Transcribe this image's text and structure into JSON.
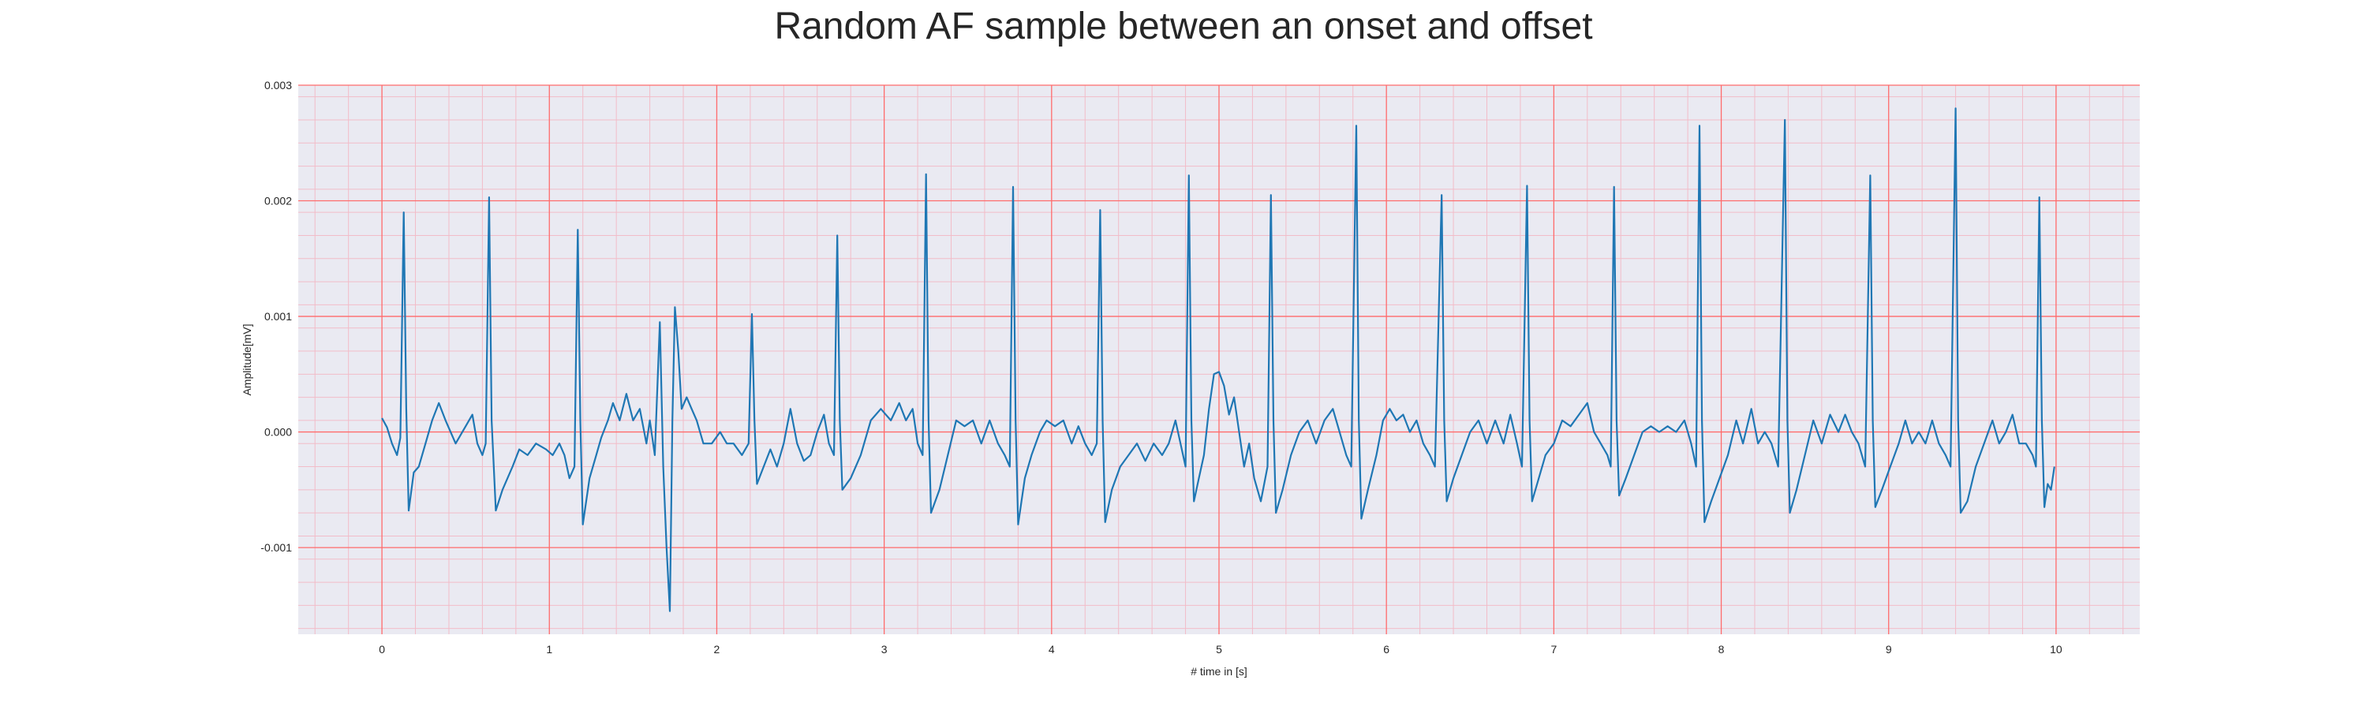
{
  "chart_data": {
    "type": "line",
    "title": "Random AF sample between an onset and offset",
    "xlabel": "# time in [s]",
    "ylabel": "Amplitude[mV]",
    "xlim": [
      -0.5,
      10.5
    ],
    "ylim": [
      -0.00175,
      0.003
    ],
    "x_ticks": [
      0,
      1,
      2,
      3,
      4,
      5,
      6,
      7,
      8,
      9,
      10
    ],
    "x_tick_labels": [
      "0",
      "1",
      "2",
      "3",
      "4",
      "5",
      "6",
      "7",
      "8",
      "9",
      "10"
    ],
    "y_ticks": [
      -0.001,
      0.0,
      0.001,
      0.002,
      0.003
    ],
    "y_tick_labels": [
      "-0.001",
      "0.000",
      "0.001",
      "0.002",
      "0.003"
    ],
    "grid": {
      "major": true,
      "minor": true
    },
    "colors": {
      "line": "#1f77b4",
      "major_grid": "#ff6b6b",
      "minor_grid": "#f2bcc8",
      "background": "#eaeaf2"
    },
    "series": [
      {
        "points": [
          [
            0.0,
            0.00012
          ],
          [
            0.03,
            4e-05
          ],
          [
            0.06,
            -0.0001
          ],
          [
            0.09,
            -0.0002
          ],
          [
            0.11,
            -5e-05
          ],
          [
            0.13,
            0.0019
          ],
          [
            0.145,
            0.0002
          ],
          [
            0.16,
            -0.00068
          ],
          [
            0.19,
            -0.00035
          ],
          [
            0.22,
            -0.0003
          ],
          [
            0.26,
            -0.0001
          ],
          [
            0.3,
            0.0001
          ],
          [
            0.34,
            0.00025
          ],
          [
            0.38,
            0.0001
          ],
          [
            0.44,
            -0.0001
          ],
          [
            0.5,
            5e-05
          ],
          [
            0.54,
            0.00015
          ],
          [
            0.57,
            -0.0001
          ],
          [
            0.6,
            -0.0002
          ],
          [
            0.62,
            -0.0001
          ],
          [
            0.64,
            0.00203
          ],
          [
            0.655,
            0.0001
          ],
          [
            0.68,
            -0.00068
          ],
          [
            0.72,
            -0.0005
          ],
          [
            0.78,
            -0.0003
          ],
          [
            0.82,
            -0.00015
          ],
          [
            0.87,
            -0.0002
          ],
          [
            0.92,
            -0.0001
          ],
          [
            0.98,
            -0.00015
          ],
          [
            1.02,
            -0.0002
          ],
          [
            1.06,
            -0.0001
          ],
          [
            1.09,
            -0.0002
          ],
          [
            1.12,
            -0.0004
          ],
          [
            1.15,
            -0.0003
          ],
          [
            1.17,
            0.00175
          ],
          [
            1.185,
            0.0001
          ],
          [
            1.2,
            -0.0008
          ],
          [
            1.24,
            -0.0004
          ],
          [
            1.28,
            -0.0002
          ],
          [
            1.31,
            -5e-05
          ],
          [
            1.35,
            0.0001
          ],
          [
            1.38,
            0.00025
          ],
          [
            1.42,
            0.0001
          ],
          [
            1.46,
            0.00033
          ],
          [
            1.5,
            0.0001
          ],
          [
            1.54,
            0.0002
          ],
          [
            1.58,
            -0.0001
          ],
          [
            1.6,
            0.0001
          ],
          [
            1.63,
            -0.0002
          ],
          [
            1.66,
            0.00095
          ],
          [
            1.68,
            -0.0003
          ],
          [
            1.7,
            -0.001
          ],
          [
            1.72,
            -0.00155
          ],
          [
            1.735,
            0.0001
          ],
          [
            1.75,
            0.00108
          ],
          [
            1.77,
            0.0007
          ],
          [
            1.79,
            0.0002
          ],
          [
            1.82,
            0.0003
          ],
          [
            1.85,
            0.0002
          ],
          [
            1.88,
            0.0001
          ],
          [
            1.92,
            -0.0001
          ],
          [
            1.97,
            -0.0001
          ],
          [
            2.02,
            0.0
          ],
          [
            2.06,
            -0.0001
          ],
          [
            2.1,
            -0.0001
          ],
          [
            2.15,
            -0.0002
          ],
          [
            2.19,
            -0.0001
          ],
          [
            2.21,
            0.00102
          ],
          [
            2.225,
            0.0001
          ],
          [
            2.24,
            -0.00045
          ],
          [
            2.28,
            -0.0003
          ],
          [
            2.32,
            -0.00015
          ],
          [
            2.36,
            -0.0003
          ],
          [
            2.4,
            -0.0001
          ],
          [
            2.44,
            0.0002
          ],
          [
            2.48,
            -0.0001
          ],
          [
            2.52,
            -0.00025
          ],
          [
            2.56,
            -0.0002
          ],
          [
            2.6,
            0.0
          ],
          [
            2.64,
            0.00015
          ],
          [
            2.67,
            -0.0001
          ],
          [
            2.7,
            -0.0002
          ],
          [
            2.72,
            0.0017
          ],
          [
            2.735,
            0.0001
          ],
          [
            2.75,
            -0.0005
          ],
          [
            2.8,
            -0.0004
          ],
          [
            2.86,
            -0.0002
          ],
          [
            2.92,
            0.0001
          ],
          [
            2.98,
            0.0002
          ],
          [
            3.04,
            0.0001
          ],
          [
            3.09,
            0.00025
          ],
          [
            3.13,
            0.0001
          ],
          [
            3.17,
            0.0002
          ],
          [
            3.2,
            -0.0001
          ],
          [
            3.23,
            -0.0002
          ],
          [
            3.25,
            0.00223
          ],
          [
            3.265,
            0.0001
          ],
          [
            3.28,
            -0.0007
          ],
          [
            3.33,
            -0.0005
          ],
          [
            3.38,
            -0.0002
          ],
          [
            3.43,
            0.0001
          ],
          [
            3.48,
            5e-05
          ],
          [
            3.53,
            0.0001
          ],
          [
            3.58,
            -0.0001
          ],
          [
            3.63,
            0.0001
          ],
          [
            3.68,
            -0.0001
          ],
          [
            3.72,
            -0.0002
          ],
          [
            3.75,
            -0.0003
          ],
          [
            3.77,
            0.00212
          ],
          [
            3.785,
            0.0001
          ],
          [
            3.8,
            -0.0008
          ],
          [
            3.84,
            -0.0004
          ],
          [
            3.88,
            -0.0002
          ],
          [
            3.93,
            0.0
          ],
          [
            3.97,
            0.0001
          ],
          [
            4.02,
            5e-05
          ],
          [
            4.07,
            0.0001
          ],
          [
            4.12,
            -0.0001
          ],
          [
            4.16,
            5e-05
          ],
          [
            4.2,
            -0.0001
          ],
          [
            4.24,
            -0.0002
          ],
          [
            4.27,
            -0.0001
          ],
          [
            4.29,
            0.00192
          ],
          [
            4.305,
            0.0001
          ],
          [
            4.32,
            -0.00078
          ],
          [
            4.36,
            -0.0005
          ],
          [
            4.41,
            -0.0003
          ],
          [
            4.46,
            -0.0002
          ],
          [
            4.51,
            -0.0001
          ],
          [
            4.56,
            -0.00025
          ],
          [
            4.61,
            -0.0001
          ],
          [
            4.66,
            -0.0002
          ],
          [
            4.7,
            -0.0001
          ],
          [
            4.74,
            0.0001
          ],
          [
            4.77,
            -0.0001
          ],
          [
            4.8,
            -0.0003
          ],
          [
            4.82,
            0.00222
          ],
          [
            4.835,
            0.0001
          ],
          [
            4.85,
            -0.0006
          ],
          [
            4.88,
            -0.0004
          ],
          [
            4.91,
            -0.0002
          ],
          [
            4.94,
            0.0002
          ],
          [
            4.97,
            0.0005
          ],
          [
            5.0,
            0.00052
          ],
          [
            5.03,
            0.0004
          ],
          [
            5.06,
            0.00015
          ],
          [
            5.09,
            0.0003
          ],
          [
            5.12,
            0.0
          ],
          [
            5.15,
            -0.0003
          ],
          [
            5.18,
            -0.0001
          ],
          [
            5.21,
            -0.0004
          ],
          [
            5.25,
            -0.0006
          ],
          [
            5.29,
            -0.0003
          ],
          [
            5.31,
            0.00205
          ],
          [
            5.325,
            0.0001
          ],
          [
            5.34,
            -0.0007
          ],
          [
            5.38,
            -0.0005
          ],
          [
            5.43,
            -0.0002
          ],
          [
            5.48,
            0.0
          ],
          [
            5.53,
            0.0001
          ],
          [
            5.58,
            -0.0001
          ],
          [
            5.63,
            0.0001
          ],
          [
            5.68,
            0.0002
          ],
          [
            5.72,
            0.0
          ],
          [
            5.76,
            -0.0002
          ],
          [
            5.79,
            -0.0003
          ],
          [
            5.82,
            0.00265
          ],
          [
            5.835,
            0.0001
          ],
          [
            5.85,
            -0.00075
          ],
          [
            5.89,
            -0.0005
          ],
          [
            5.94,
            -0.0002
          ],
          [
            5.98,
            0.0001
          ],
          [
            6.02,
            0.0002
          ],
          [
            6.06,
            0.0001
          ],
          [
            6.1,
            0.00015
          ],
          [
            6.14,
            0.0
          ],
          [
            6.18,
            0.0001
          ],
          [
            6.22,
            -0.0001
          ],
          [
            6.26,
            -0.0002
          ],
          [
            6.29,
            -0.0003
          ],
          [
            6.33,
            0.00205
          ],
          [
            6.345,
            0.0001
          ],
          [
            6.36,
            -0.0006
          ],
          [
            6.4,
            -0.0004
          ],
          [
            6.45,
            -0.0002
          ],
          [
            6.5,
            0.0
          ],
          [
            6.55,
            0.0001
          ],
          [
            6.6,
            -0.0001
          ],
          [
            6.65,
            0.0001
          ],
          [
            6.7,
            -0.0001
          ],
          [
            6.74,
            0.00015
          ],
          [
            6.78,
            -0.0001
          ],
          [
            6.81,
            -0.0003
          ],
          [
            6.84,
            0.00213
          ],
          [
            6.855,
            0.0001
          ],
          [
            6.87,
            -0.0006
          ],
          [
            6.91,
            -0.0004
          ],
          [
            6.95,
            -0.0002
          ],
          [
            7.0,
            -0.0001
          ],
          [
            7.05,
            0.0001
          ],
          [
            7.1,
            5e-05
          ],
          [
            7.15,
            0.00015
          ],
          [
            7.2,
            0.00025
          ],
          [
            7.24,
            0.0
          ],
          [
            7.28,
            -0.0001
          ],
          [
            7.32,
            -0.0002
          ],
          [
            7.34,
            -0.0003
          ],
          [
            7.36,
            0.00212
          ],
          [
            7.375,
            0.0001
          ],
          [
            7.39,
            -0.00055
          ],
          [
            7.43,
            -0.0004
          ],
          [
            7.48,
            -0.0002
          ],
          [
            7.53,
            0.0
          ],
          [
            7.58,
            5e-05
          ],
          [
            7.63,
            0.0
          ],
          [
            7.68,
            5e-05
          ],
          [
            7.73,
            0.0
          ],
          [
            7.78,
            0.0001
          ],
          [
            7.82,
            -0.0001
          ],
          [
            7.85,
            -0.0003
          ],
          [
            7.87,
            0.00265
          ],
          [
            7.885,
            0.0001
          ],
          [
            7.9,
            -0.00078
          ],
          [
            7.94,
            -0.0006
          ],
          [
            7.99,
            -0.0004
          ],
          [
            8.04,
            -0.0002
          ],
          [
            8.09,
            0.0001
          ],
          [
            8.13,
            -0.0001
          ],
          [
            8.18,
            0.0002
          ],
          [
            8.22,
            -0.0001
          ],
          [
            8.26,
            0.0
          ],
          [
            8.3,
            -0.0001
          ],
          [
            8.34,
            -0.0003
          ],
          [
            8.38,
            0.0027
          ],
          [
            8.395,
            0.0001
          ],
          [
            8.41,
            -0.0007
          ],
          [
            8.45,
            -0.0005
          ],
          [
            8.5,
            -0.0002
          ],
          [
            8.55,
            0.0001
          ],
          [
            8.6,
            -0.0001
          ],
          [
            8.65,
            0.00015
          ],
          [
            8.7,
            0.0
          ],
          [
            8.74,
            0.00015
          ],
          [
            8.78,
            0.0
          ],
          [
            8.82,
            -0.0001
          ],
          [
            8.86,
            -0.0003
          ],
          [
            8.89,
            0.00222
          ],
          [
            8.905,
            0.0001
          ],
          [
            8.92,
            -0.00065
          ],
          [
            8.96,
            -0.0005
          ],
          [
            9.01,
            -0.0003
          ],
          [
            9.06,
            -0.0001
          ],
          [
            9.1,
            0.0001
          ],
          [
            9.14,
            -0.0001
          ],
          [
            9.18,
            0.0
          ],
          [
            9.22,
            -0.0001
          ],
          [
            9.26,
            0.0001
          ],
          [
            9.3,
            -0.0001
          ],
          [
            9.34,
            -0.0002
          ],
          [
            9.37,
            -0.0003
          ],
          [
            9.4,
            0.0028
          ],
          [
            9.415,
            0.0001
          ],
          [
            9.43,
            -0.0007
          ],
          [
            9.47,
            -0.0006
          ],
          [
            9.52,
            -0.0003
          ],
          [
            9.57,
            -0.0001
          ],
          [
            9.62,
            0.0001
          ],
          [
            9.66,
            -0.0001
          ],
          [
            9.7,
            0.0
          ],
          [
            9.74,
            0.00015
          ],
          [
            9.78,
            -0.0001
          ],
          [
            9.82,
            -0.0001
          ],
          [
            9.86,
            -0.0002
          ],
          [
            9.88,
            -0.0003
          ],
          [
            9.9,
            0.00203
          ],
          [
            9.915,
            0.0001
          ],
          [
            9.93,
            -0.00065
          ],
          [
            9.95,
            -0.00045
          ],
          [
            9.97,
            -0.0005
          ],
          [
            9.99,
            -0.0003
          ]
        ]
      }
    ]
  }
}
